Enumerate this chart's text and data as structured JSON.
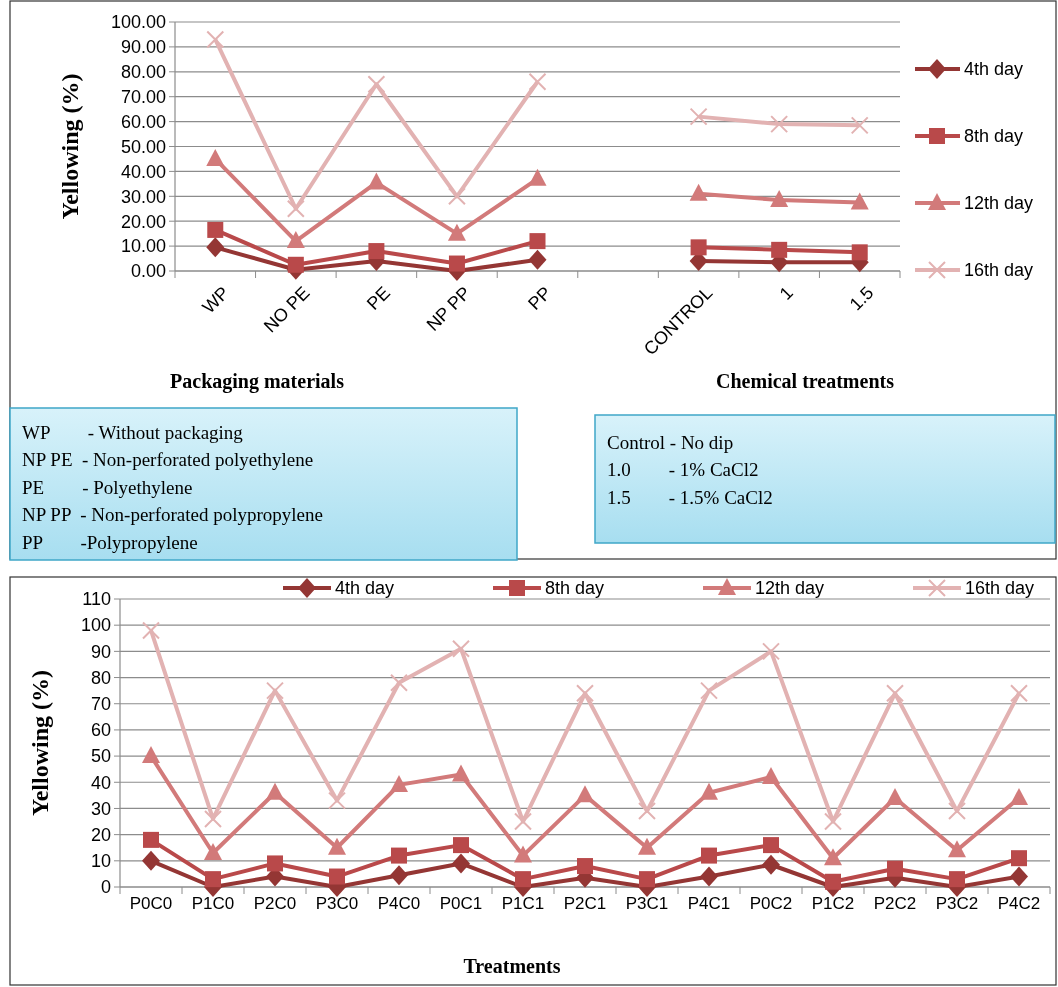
{
  "chart_data": [
    {
      "type": "line",
      "ylabel": "Yellowing (%)",
      "xlabel": "Packaging materials",
      "categories": [
        "WP",
        "NO PE",
        "PE",
        "NP PP",
        "PP",
        null,
        "CONTROL",
        "1",
        "1.5"
      ],
      "ylim": [
        0,
        100
      ],
      "yticks": [
        {
          "value": 0,
          "label": "0.00"
        },
        {
          "value": 10,
          "label": "10.00"
        },
        {
          "value": 20,
          "label": "20.00"
        },
        {
          "value": 30,
          "label": "30.00"
        },
        {
          "value": 40,
          "label": "40.00"
        },
        {
          "value": 50,
          "label": "50.00"
        },
        {
          "value": 60,
          "label": "60.00"
        },
        {
          "value": 70,
          "label": "70.00"
        },
        {
          "value": 80,
          "label": "80.00"
        },
        {
          "value": 90,
          "label": "90.00"
        },
        {
          "value": 100,
          "label": "100.00"
        }
      ],
      "grid": "y",
      "legend": "right",
      "annotations": [
        "Chemical treatments",
        "WP        - Without packaging\nNP PE  - Non-perforated polyethylene\nPE        - Polyethylene\nNP PP  - Non-perforated polypropylene\nPP        -Polypropylene",
        "Control - No dip\n1.0        - 1% CaCl2\n1.5        - 1.5% CaCl2"
      ],
      "series": [
        {
          "name": "4th day",
          "color": "#943634",
          "marker": "diamond",
          "values": [
            9.5,
            0.5,
            4,
            0,
            4.5,
            null,
            4,
            3.5,
            3.5
          ]
        },
        {
          "name": "8th day",
          "color": "#b9494a",
          "marker": "square",
          "values": [
            16.5,
            2.5,
            8,
            3,
            12,
            null,
            9.5,
            8.5,
            7.5
          ]
        },
        {
          "name": "12th day",
          "color": "#d27a7a",
          "marker": "triangle",
          "values": [
            45,
            12,
            35.5,
            15,
            37,
            null,
            31,
            28.5,
            27.5
          ]
        },
        {
          "name": "16th day",
          "color": "#e2b2b2",
          "marker": "cross",
          "values": [
            93,
            25,
            75,
            30,
            76,
            null,
            62,
            59,
            58.5
          ]
        }
      ]
    },
    {
      "type": "line",
      "ylabel": "Yellowing (%)",
      "xlabel": "Treatments",
      "categories": [
        "P0C0",
        "P1C0",
        "P2C0",
        "P3C0",
        "P4C0",
        "P0C1",
        "P1C1",
        "P2C1",
        "P3C1",
        "P4C1",
        "P0C2",
        "P1C2",
        "P2C2",
        "P3C2",
        "P4C2"
      ],
      "ylim": [
        0,
        110
      ],
      "yticks": [
        0,
        10,
        20,
        30,
        40,
        50,
        60,
        70,
        80,
        90,
        100,
        110
      ],
      "grid": "y",
      "legend": "top",
      "series": [
        {
          "name": "4th day",
          "color": "#943634",
          "marker": "diamond",
          "values": [
            10,
            0,
            4,
            0,
            4.5,
            9,
            0,
            3.5,
            0,
            4,
            8.5,
            0,
            3.5,
            0,
            4
          ]
        },
        {
          "name": "8th day",
          "color": "#b9494a",
          "marker": "square",
          "values": [
            18,
            3,
            9,
            4,
            12,
            16,
            3,
            8,
            3,
            12,
            16,
            2,
            7,
            3,
            11
          ]
        },
        {
          "name": "12th day",
          "color": "#d27a7a",
          "marker": "triangle",
          "values": [
            50,
            13,
            36,
            15,
            39,
            43,
            12,
            35,
            15,
            36,
            42,
            11,
            34,
            14,
            34
          ]
        },
        {
          "name": "16th day",
          "color": "#e2b2b2",
          "marker": "cross",
          "values": [
            98,
            26,
            75,
            33,
            78,
            91,
            25,
            74,
            29,
            75,
            90,
            25,
            74,
            29,
            74
          ]
        }
      ]
    }
  ]
}
